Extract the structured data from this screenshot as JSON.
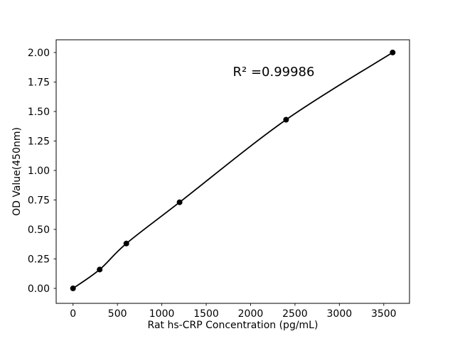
{
  "figure": {
    "background": "#ffffff",
    "foreground": "#000000"
  },
  "chart_data": {
    "type": "scatter",
    "title": "",
    "xlabel": "Rat hs-CRP Concentration (pg/mL)",
    "ylabel": "OD Value(450nm)",
    "annotation": "R² =0.99986",
    "annotation_xy": [
      1800,
      1.8
    ],
    "series": [
      {
        "name": "standard-curve",
        "x": [
          0,
          300,
          600,
          1200,
          2400,
          3600
        ],
        "y": [
          0.0,
          0.16,
          0.38,
          0.73,
          1.43,
          2.0
        ],
        "marker": "circle",
        "color": "#000000",
        "fit_line": true
      }
    ],
    "xtick_values": [
      0,
      500,
      1000,
      1500,
      2000,
      2500,
      3000,
      3500
    ],
    "xtick_labels": [
      "0",
      "500",
      "1000",
      "1500",
      "2000",
      "2500",
      "3000",
      "3500"
    ],
    "ytick_values": [
      0.0,
      0.25,
      0.5,
      0.75,
      1.0,
      1.25,
      1.5,
      1.75,
      2.0
    ],
    "ytick_labels": [
      "0.00",
      "0.25",
      "0.50",
      "0.75",
      "1.00",
      "1.25",
      "1.50",
      "1.75",
      "2.00"
    ],
    "xlim": [
      -190,
      3790
    ],
    "ylim": [
      -0.127,
      2.108
    ],
    "grid": false,
    "legend": null
  }
}
